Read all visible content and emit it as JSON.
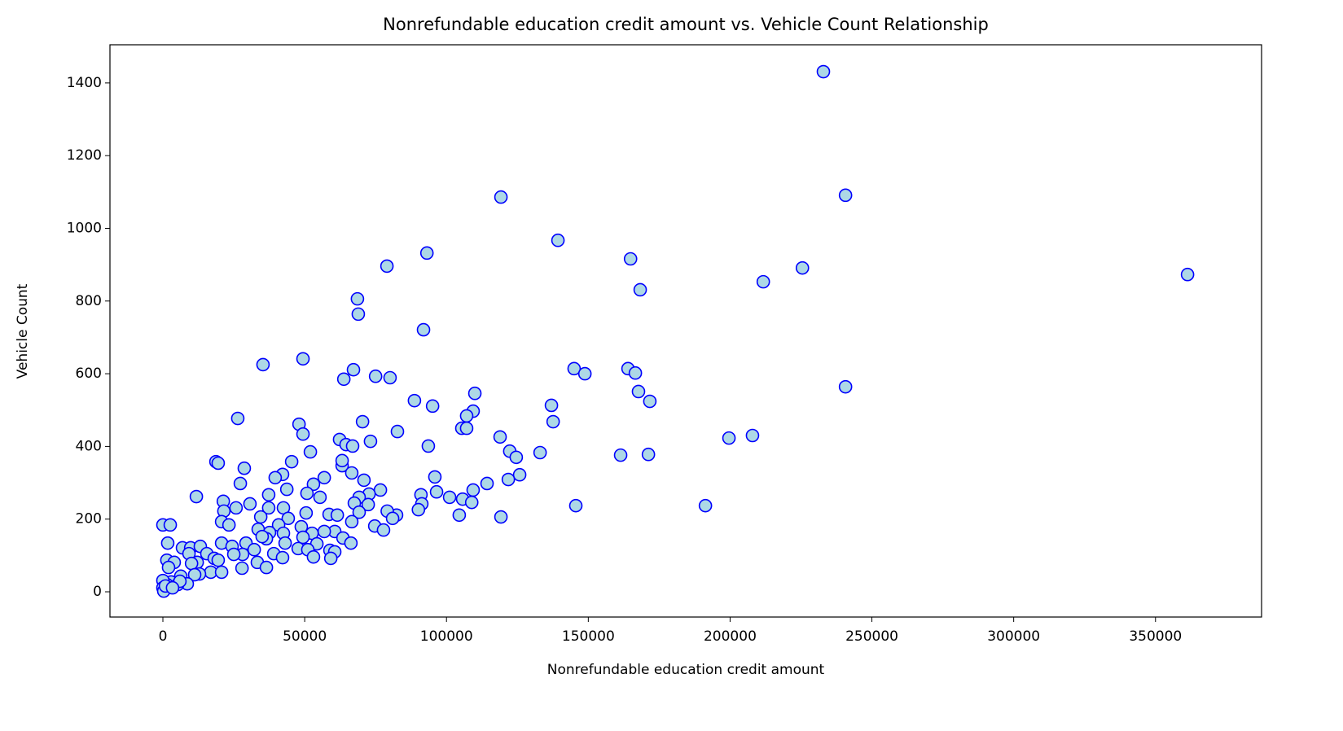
{
  "chart_data": {
    "type": "scatter",
    "title": "Nonrefundable education credit amount vs. Vehicle Count Relationship",
    "x_label": "Nonrefundable education credit amount",
    "y_label": "Vehicle Count",
    "color": "#add8e6",
    "edge_color": "#0000ff",
    "xlim": [
      -18670,
      387400
    ],
    "ylim": [
      -69.4,
      1505
    ],
    "xticks": [
      0,
      50000,
      100000,
      150000,
      200000,
      250000,
      300000,
      350000
    ],
    "yticks": [
      0,
      200,
      400,
      600,
      800,
      1000,
      1200,
      1400
    ],
    "x": [
      232900,
      240700,
      119200,
      139300,
      93100,
      79000,
      225500,
      361300,
      164900,
      211700,
      168300,
      68600,
      68900,
      91900,
      35300,
      49400,
      67200,
      63800,
      75000,
      80100,
      145000,
      148800,
      164000,
      166600,
      110000,
      240700,
      167700,
      171700,
      88700,
      95100,
      137000,
      109400,
      107100,
      105400,
      107100,
      137600,
      26400,
      48000,
      49400,
      70400,
      73200,
      82700,
      93600,
      118900,
      122300,
      133000,
      124600,
      161400,
      171200,
      199600,
      207900,
      62300,
      64600,
      66900,
      52000,
      45400,
      18700,
      19500,
      63200,
      28700,
      63200,
      66600,
      42200,
      39600,
      56900,
      95900,
      70900,
      125800,
      114300,
      121800,
      27300,
      53100,
      43700,
      76700,
      109400,
      96500,
      37300,
      50800,
      55400,
      72700,
      69200,
      91000,
      101100,
      105700,
      108900,
      67500,
      11800,
      21300,
      30700,
      72400,
      91300,
      145600,
      191300,
      25800,
      37300,
      42500,
      90100,
      21500,
      58600,
      104500,
      82400,
      79100,
      61500,
      69200,
      50500,
      119200,
      81000,
      44200,
      34500,
      20700,
      0,
      2600,
      23300,
      40800,
      48800,
      66600,
      74700,
      77800,
      60600,
      56900,
      52600,
      42500,
      33600,
      37600,
      63500,
      66300,
      49400,
      43100,
      54300,
      29300,
      20700,
      1700,
      6900,
      9800,
      13200,
      24400,
      32200,
      47700,
      51100,
      58900,
      60600,
      39100,
      28100,
      25000,
      15500,
      9200,
      18100,
      1400,
      4000,
      12100,
      33300,
      42200,
      53100,
      59200,
      19500,
      10100,
      27900,
      36500,
      2000,
      16900,
      20700,
      12900,
      11200,
      6300,
      8600,
      2900,
      5200,
      6000,
      1400,
      0,
      0,
      300,
      900,
      3400,
      36500,
      35000
    ],
    "values": [
      1431,
      1091,
      1086,
      967,
      932,
      896,
      891,
      873,
      916,
      853,
      831,
      806,
      764,
      721,
      625,
      641,
      611,
      585,
      593,
      589,
      614,
      600,
      614,
      602,
      546,
      564,
      551,
      524,
      526,
      511,
      513,
      497,
      484,
      450,
      450,
      468,
      477,
      461,
      434,
      468,
      414,
      441,
      401,
      426,
      387,
      383,
      370,
      376,
      378,
      423,
      430,
      419,
      405,
      401,
      385,
      358,
      358,
      354,
      347,
      340,
      361,
      327,
      323,
      314,
      314,
      316,
      307,
      322,
      298,
      309,
      298,
      296,
      282,
      280,
      280,
      275,
      267,
      271,
      260,
      269,
      260,
      267,
      260,
      255,
      246,
      244,
      262,
      249,
      242,
      240,
      242,
      237,
      237,
      231,
      231,
      231,
      226,
      222,
      213,
      211,
      211,
      222,
      211,
      219,
      217,
      206,
      202,
      202,
      206,
      193,
      184,
      184,
      184,
      184,
      179,
      193,
      181,
      170,
      166,
      166,
      161,
      161,
      172,
      163,
      148,
      134,
      150,
      134,
      132,
      134,
      134,
      134,
      121,
      121,
      125,
      125,
      116,
      119,
      116,
      114,
      110,
      105,
      103,
      103,
      105,
      105,
      92,
      87,
      81,
      81,
      81,
      94,
      96,
      92,
      87,
      78,
      65,
      67,
      67,
      54,
      54,
      49,
      47,
      43,
      22,
      27,
      20,
      29,
      20,
      31,
      11,
      2,
      16,
      11,
      146,
      152
    ]
  }
}
